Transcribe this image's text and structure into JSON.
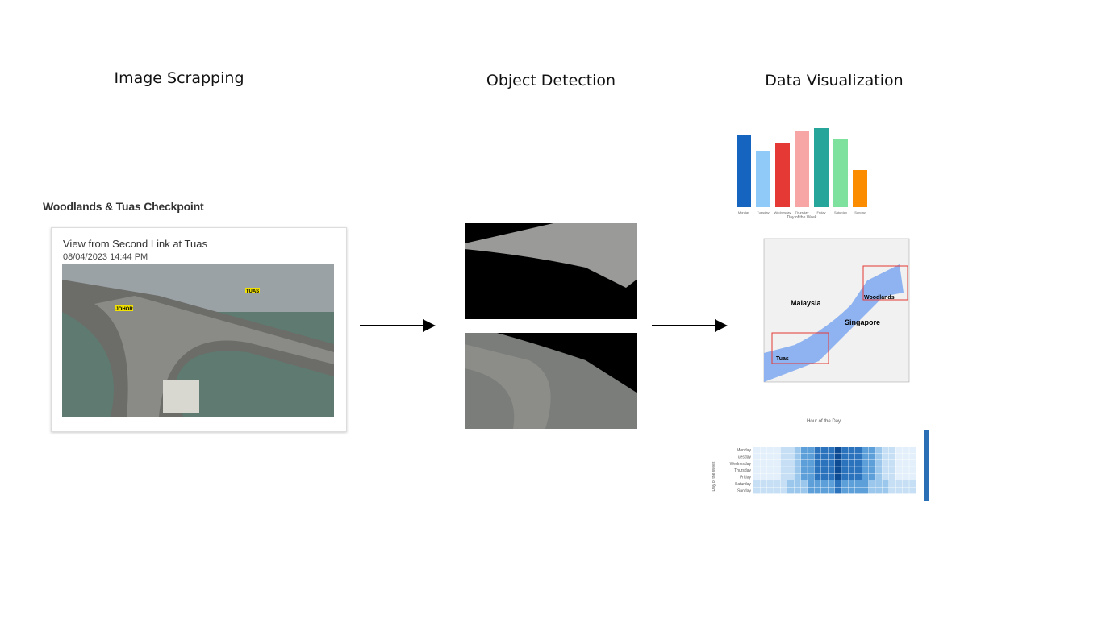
{
  "headings": [
    "Image Scrapping",
    "Object Detection",
    "Data Visualization"
  ],
  "source": {
    "title": "Woodlands & Tuas Checkpoint",
    "card_title": "View from Second Link at Tuas",
    "timestamp": "08/04/2023 14:44 PM",
    "camera_labels": [
      "JOHOR",
      "TUAS"
    ]
  },
  "bar_chart": {
    "x_label": "Day of the Week",
    "categories": [
      "Monday",
      "Tuesday",
      "Wednesday",
      "Thursday",
      "Friday",
      "Saturday",
      "Sunday"
    ]
  },
  "map": {
    "labels": [
      "Malaysia",
      "Singapore",
      "Woodlands",
      "Tuas"
    ]
  },
  "heatmap": {
    "title": "Hour of the Day",
    "y_label": "Day of the Week",
    "rows": [
      "Monday",
      "Tuesday",
      "Wednesday",
      "Thursday",
      "Friday",
      "Saturday",
      "Sunday"
    ]
  }
}
